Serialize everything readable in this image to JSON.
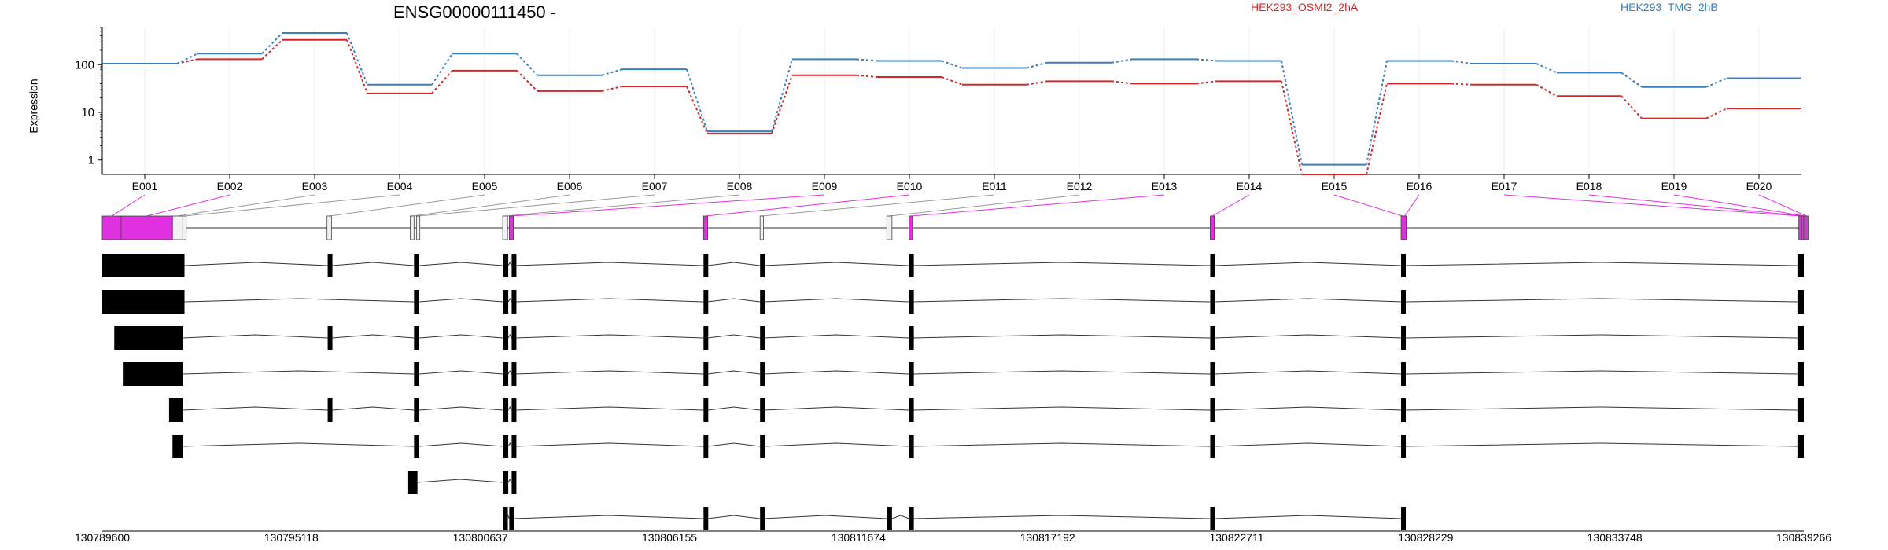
{
  "chart_data": {
    "type": "line",
    "title": "ENSG00000111450 -",
    "ylabel": "Expression",
    "yscale": "log",
    "ylim": [
      0.5,
      600
    ],
    "yticks": [
      "1",
      "10",
      "100"
    ],
    "ytick_values": [
      1,
      10,
      100
    ],
    "categories": [
      "E001",
      "E002",
      "E003",
      "E004",
      "E005",
      "E006",
      "E007",
      "E008",
      "E009",
      "E010",
      "E011",
      "E012",
      "E013",
      "E014",
      "E015",
      "E016",
      "E017",
      "E018",
      "E019",
      "E020"
    ],
    "series": [
      {
        "name": "HEK293_OSMI2_2hA",
        "color": "#d62728",
        "values": [
          105,
          130,
          330,
          25,
          75,
          28,
          35,
          3.6,
          60,
          55,
          38,
          45,
          40,
          45,
          0.5,
          40,
          38,
          22,
          7.5,
          12
        ]
      },
      {
        "name": "HEK293_TMG_2hB",
        "color": "#3a7fbf",
        "values": [
          105,
          170,
          460,
          38,
          170,
          60,
          80,
          4.0,
          130,
          120,
          85,
          110,
          130,
          120,
          0.8,
          120,
          105,
          68,
          34,
          52
        ]
      }
    ],
    "grid": true,
    "legend_position": "top"
  },
  "gene_model": {
    "coordinate_ticks": [
      "130789600",
      "130795118",
      "130800637",
      "130806155",
      "130811674",
      "130817192",
      "130822711",
      "130828229",
      "130833748",
      "130839266"
    ],
    "coordinate_tick_values": [
      130789600,
      130795118,
      130800637,
      130806155,
      130811674,
      130817192,
      130822711,
      130828229,
      130833748,
      130839266
    ],
    "genome_range": [
      130789600,
      130839266
    ],
    "highlight_color": "#e030e0",
    "exon_bins": [
      {
        "id": "E001",
        "start": 130789600,
        "end": 130790150,
        "hl": true
      },
      {
        "id": "E002",
        "start": 130790150,
        "end": 130791650,
        "hl": true
      },
      {
        "id": "E003",
        "start": 130791650,
        "end": 130791950,
        "hl": false
      },
      {
        "id": "E004",
        "start": 130791950,
        "end": 130792050,
        "hl": false
      },
      {
        "id": "E005",
        "start": 130796160,
        "end": 130796290,
        "hl": false
      },
      {
        "id": "E006",
        "start": 130798590,
        "end": 130798700,
        "hl": false
      },
      {
        "id": "E007",
        "start": 130798770,
        "end": 130798870,
        "hl": false
      },
      {
        "id": "E008",
        "start": 130801290,
        "end": 130801430,
        "hl": false
      },
      {
        "id": "E009",
        "start": 130801480,
        "end": 130801600,
        "hl": true
      },
      {
        "id": "E010",
        "start": 130807150,
        "end": 130807270,
        "hl": true
      },
      {
        "id": "E011",
        "start": 130808800,
        "end": 130808900,
        "hl": false
      },
      {
        "id": "E012",
        "start": 130812500,
        "end": 130812650,
        "hl": false
      },
      {
        "id": "E013",
        "start": 130813150,
        "end": 130813250,
        "hl": true
      },
      {
        "id": "E014",
        "start": 130821940,
        "end": 130822060,
        "hl": true
      },
      {
        "id": "E015",
        "start": 130827510,
        "end": 130827570,
        "hl": true
      },
      {
        "id": "E016",
        "start": 130827570,
        "end": 130827610,
        "hl": true
      },
      {
        "id": "E017",
        "start": 130839120,
        "end": 130839200,
        "hl": true
      },
      {
        "id": "E018",
        "start": 130839200,
        "end": 130839266,
        "hl": true
      },
      {
        "id": "E019",
        "start": 130839266,
        "end": 130839300,
        "hl": true
      },
      {
        "id": "E020",
        "start": 130839300,
        "end": 130839350,
        "hl": true
      }
    ],
    "transcripts": [
      {
        "exons": [
          [
            130789600,
            130792000
          ],
          [
            130796180,
            130796300
          ],
          [
            130798700,
            130798850
          ],
          [
            130801300,
            130801450
          ],
          [
            130801550,
            130801650
          ],
          [
            130807150,
            130807270
          ],
          [
            130808800,
            130808900
          ],
          [
            130813150,
            130813250
          ],
          [
            130821940,
            130822060
          ],
          [
            130827510,
            130827610
          ],
          [
            130839080,
            130839266
          ]
        ]
      },
      {
        "exons": [
          [
            130789600,
            130792000
          ],
          [
            130798700,
            130798850
          ],
          [
            130801300,
            130801450
          ],
          [
            130801550,
            130801650
          ],
          [
            130807150,
            130807270
          ],
          [
            130808800,
            130808900
          ],
          [
            130813150,
            130813250
          ],
          [
            130821940,
            130822060
          ],
          [
            130827510,
            130827610
          ],
          [
            130839080,
            130839266
          ]
        ]
      },
      {
        "exons": [
          [
            130789950,
            130791950
          ],
          [
            130796180,
            130796300
          ],
          [
            130798700,
            130798850
          ],
          [
            130801300,
            130801450
          ],
          [
            130801550,
            130801650
          ],
          [
            130807150,
            130807270
          ],
          [
            130808800,
            130808900
          ],
          [
            130813150,
            130813250
          ],
          [
            130821940,
            130822060
          ],
          [
            130827510,
            130827610
          ],
          [
            130839080,
            130839266
          ]
        ]
      },
      {
        "exons": [
          [
            130790200,
            130791950
          ],
          [
            130798700,
            130798850
          ],
          [
            130801300,
            130801450
          ],
          [
            130801550,
            130801650
          ],
          [
            130807150,
            130807270
          ],
          [
            130808800,
            130808900
          ],
          [
            130813150,
            130813250
          ],
          [
            130821940,
            130822060
          ],
          [
            130827510,
            130827610
          ],
          [
            130839080,
            130839266
          ]
        ]
      },
      {
        "exons": [
          [
            130791550,
            130791950
          ],
          [
            130796180,
            130796300
          ],
          [
            130798700,
            130798850
          ],
          [
            130801300,
            130801450
          ],
          [
            130801550,
            130801650
          ],
          [
            130807150,
            130807270
          ],
          [
            130808800,
            130808900
          ],
          [
            130813150,
            130813250
          ],
          [
            130821940,
            130822060
          ],
          [
            130827510,
            130827610
          ],
          [
            130839080,
            130839266
          ]
        ]
      },
      {
        "exons": [
          [
            130791650,
            130791950
          ],
          [
            130798700,
            130798850
          ],
          [
            130801300,
            130801450
          ],
          [
            130801550,
            130801650
          ],
          [
            130807150,
            130807270
          ],
          [
            130808800,
            130808900
          ],
          [
            130813150,
            130813250
          ],
          [
            130821940,
            130822060
          ],
          [
            130827510,
            130827610
          ],
          [
            130839080,
            130839266
          ]
        ]
      },
      {
        "exons": [
          [
            130798530,
            130798800
          ],
          [
            130801300,
            130801450
          ],
          [
            130801550,
            130801650
          ]
        ]
      },
      {
        "exons": [
          [
            130801300,
            130801400
          ],
          [
            130801480,
            130801600
          ],
          [
            130807150,
            130807270
          ],
          [
            130808800,
            130808900
          ],
          [
            130812500,
            130812650
          ],
          [
            130813150,
            130813250
          ],
          [
            130821940,
            130822060
          ],
          [
            130827510,
            130827610
          ]
        ]
      }
    ]
  }
}
